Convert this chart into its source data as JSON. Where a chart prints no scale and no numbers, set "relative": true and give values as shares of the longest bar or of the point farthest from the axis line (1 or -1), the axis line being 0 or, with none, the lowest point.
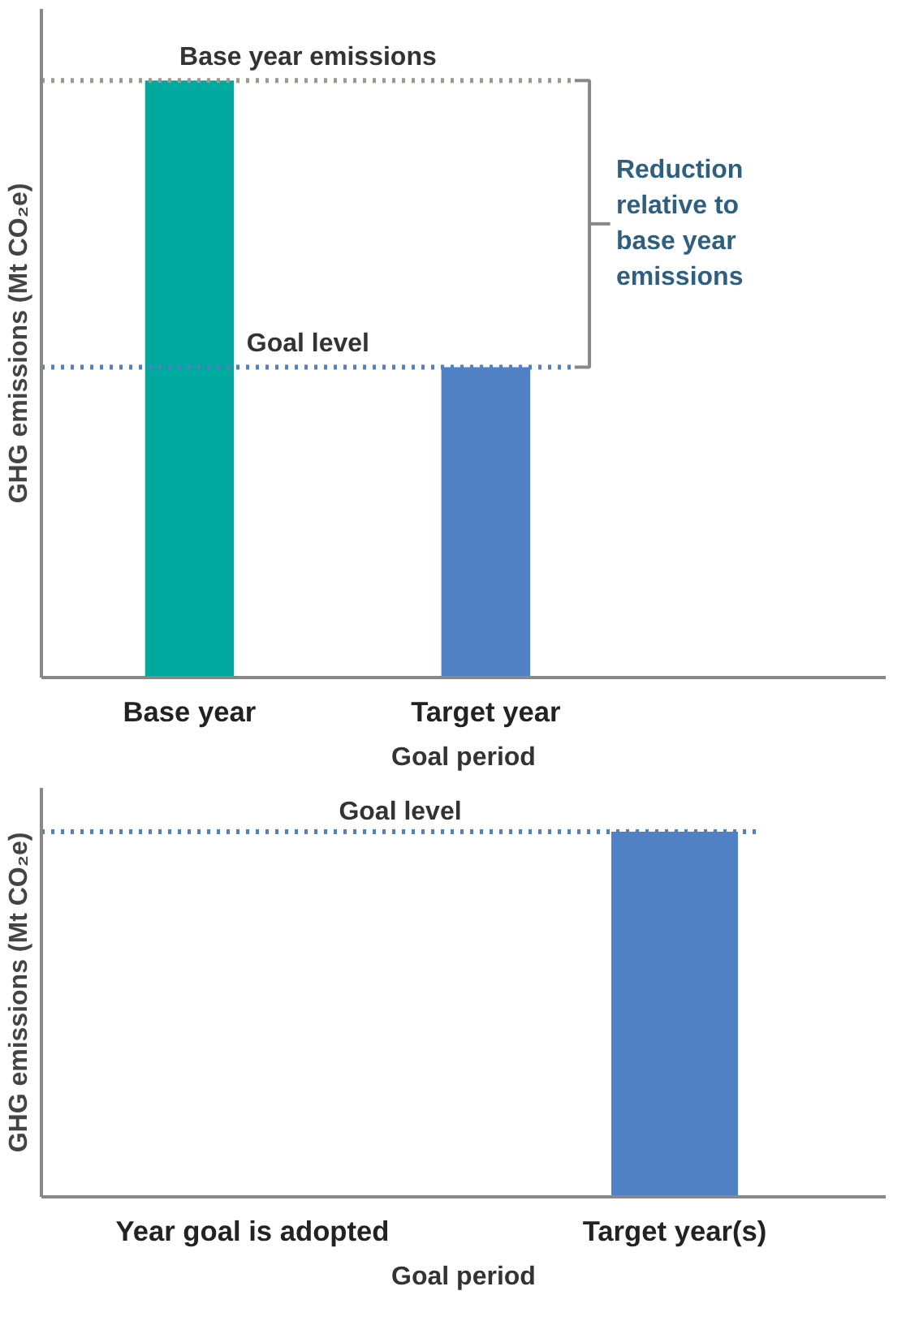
{
  "chart_data": [
    {
      "type": "bar",
      "relative": true,
      "ylabel": "GHG emissions (Mt CO₂e)",
      "categories": [
        "Base year",
        "Target year"
      ],
      "colors": [
        "#00a99d",
        "#4f81c4"
      ],
      "values": [
        1,
        0.52
      ],
      "ref_lines": [
        {
          "axis": "y",
          "value": 1,
          "label": "Base year emissions",
          "color": "#9a9a8c",
          "line_style": "dotted"
        },
        {
          "axis": "y",
          "value": 0.52,
          "label": "Goal level",
          "color": "#4f81c4",
          "line_style": "dotted"
        }
      ],
      "annotations": [
        "Reduction relative to base year emissions",
        "Goal period"
      ],
      "grid": false
    },
    {
      "type": "bar",
      "relative": true,
      "ylabel": "GHG emissions (Mt CO₂e)",
      "categories": [
        "Year goal is adopted",
        "Target year(s)"
      ],
      "colors": [
        null,
        "#4f81c4"
      ],
      "values": [
        null,
        1
      ],
      "ref_lines": [
        {
          "axis": "y",
          "value": 1,
          "label": "Goal level",
          "color": "#4f81c4",
          "line_style": "dotted"
        }
      ],
      "annotations": [
        "Goal period"
      ],
      "grid": false
    }
  ]
}
